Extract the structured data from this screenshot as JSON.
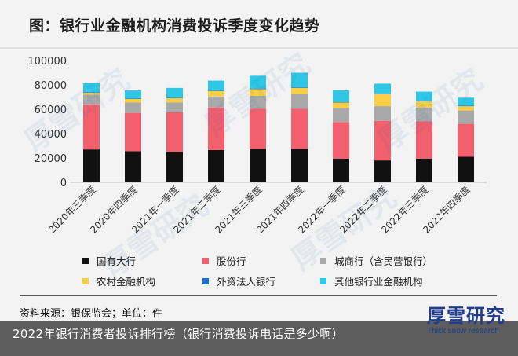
{
  "title": "图：银行业金融机构消费投诉季度变化趋势",
  "source_label": "资料来源：银保监会；单位：件",
  "caption": "2022年银行消费者投诉排行榜（银行消费投诉电话是多少啊）",
  "logo": {
    "main": "厚雪研究",
    "sub": "Thick snow research"
  },
  "watermark_text": "厚雪研究",
  "chart_data": {
    "type": "bar",
    "stacked": true,
    "title": "图：银行业金融机构消费投诉季度变化趋势",
    "xlabel": "",
    "ylabel": "",
    "ylim": [
      0,
      100000
    ],
    "yticks": [
      0,
      20000,
      40000,
      60000,
      80000,
      100000
    ],
    "grid": false,
    "legend_position": "bottom",
    "categories": [
      "2020年三季度",
      "2020年四季度",
      "2021年一季度",
      "2021年二季度",
      "2021年三季度",
      "2021年四季度",
      "2022年一季度",
      "2022年二季度",
      "2022年三季度",
      "2022年四季度"
    ],
    "series": [
      {
        "name": "国有大行",
        "color": "#111111",
        "values": [
          27000,
          25500,
          25000,
          26500,
          27500,
          27500,
          19500,
          18000,
          19500,
          21000
        ]
      },
      {
        "name": "股份行",
        "color": "#f2606e",
        "values": [
          37000,
          31500,
          32500,
          35000,
          33000,
          33000,
          30000,
          32500,
          30500,
          27000
        ]
      },
      {
        "name": "城商行（含民营银行）",
        "color": "#a9a9a9",
        "values": [
          8000,
          8500,
          8000,
          9000,
          10500,
          12000,
          11500,
          12000,
          11500,
          11000
        ]
      },
      {
        "name": "农村金融机构",
        "color": "#f9cf45",
        "values": [
          1500,
          3000,
          3500,
          4500,
          5500,
          5000,
          4500,
          10000,
          5000,
          3500
        ]
      },
      {
        "name": "外资法人银行",
        "color": "#1a72c9",
        "values": [
          500,
          500,
          500,
          500,
          500,
          500,
          500,
          500,
          500,
          500
        ]
      },
      {
        "name": "其他银行业金融机构",
        "color": "#2ec8e6",
        "values": [
          7500,
          6500,
          8000,
          8000,
          10500,
          12000,
          9500,
          8000,
          7500,
          6500
        ]
      }
    ]
  }
}
